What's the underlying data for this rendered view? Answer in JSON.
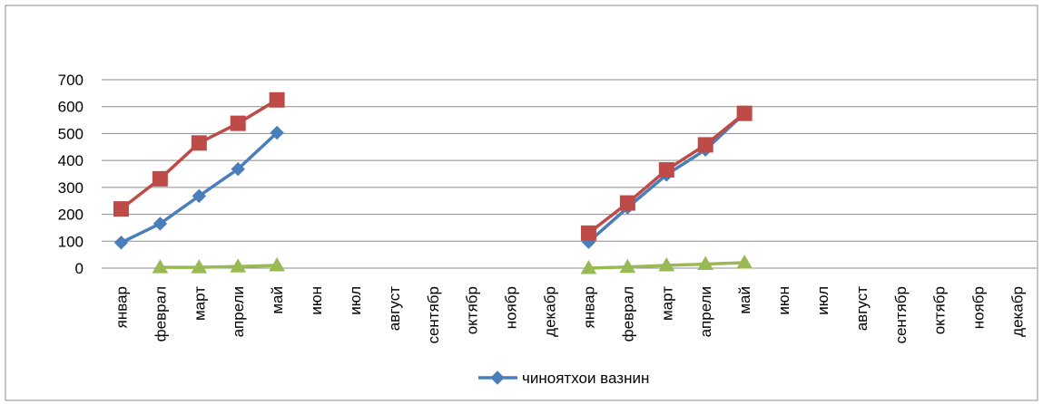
{
  "chart_data": {
    "type": "line",
    "categories": [
      "январ",
      "феврал",
      "март",
      "апрели",
      "май",
      "июн",
      "июл",
      "август",
      "сентябр",
      "октябр",
      "ноябр",
      "декабр",
      "январ",
      "феврал",
      "март",
      "апрели",
      "май",
      "июн",
      "июл",
      "август",
      "сентябр",
      "октябр",
      "ноябр",
      "декабр"
    ],
    "ylim": [
      0,
      700
    ],
    "yticks": [
      0,
      100,
      200,
      300,
      400,
      500,
      600,
      700
    ],
    "grid": true,
    "legend_position": "bottom",
    "series": [
      {
        "name": "чиноятхои вазнин",
        "color": "#4a7ebb",
        "marker": "diamond",
        "values": [
          95,
          165,
          268,
          368,
          503,
          null,
          null,
          null,
          null,
          null,
          null,
          null,
          97,
          225,
          347,
          440,
          575,
          null,
          null,
          null,
          null,
          null,
          null,
          null
        ]
      },
      {
        "color": "#be4b48",
        "marker": "square",
        "values": [
          220,
          332,
          465,
          538,
          625,
          null,
          null,
          null,
          null,
          null,
          null,
          null,
          130,
          242,
          365,
          458,
          575,
          null,
          null,
          null,
          null,
          null,
          null,
          null
        ]
      },
      {
        "color": "#98b954",
        "marker": "triangle",
        "values": [
          null,
          3,
          3,
          6,
          10,
          null,
          null,
          null,
          null,
          null,
          null,
          null,
          0,
          4,
          10,
          15,
          20,
          null,
          null,
          null,
          null,
          null,
          null,
          null
        ]
      }
    ]
  }
}
